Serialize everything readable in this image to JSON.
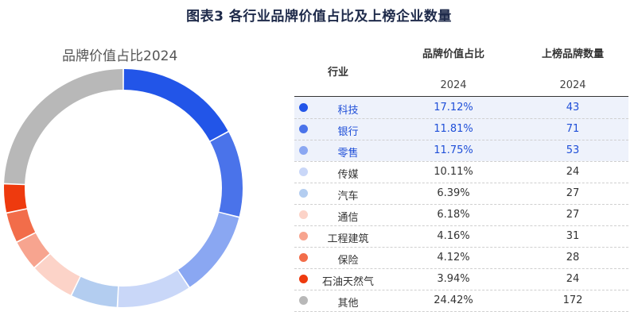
{
  "figure_title": "图表3 各行业品牌价值占比及上榜企业数量",
  "donut_title": "品牌价值占比2024",
  "table": {
    "col_industry": "行业",
    "col_share": "品牌价值占比",
    "col_count": "上榜品牌数量",
    "year_share": "2024",
    "year_count": "2024"
  },
  "chart_data": {
    "type": "pie",
    "title": "品牌价值占比2024",
    "donut": true,
    "categories": [
      "科技",
      "银行",
      "零售",
      "传媒",
      "汽车",
      "通信",
      "工程建筑",
      "保险",
      "石油天然气",
      "其他"
    ],
    "values": [
      17.12,
      11.81,
      11.75,
      10.11,
      6.39,
      6.18,
      4.16,
      4.12,
      3.94,
      24.42
    ],
    "value_labels": [
      "17.12%",
      "11.81%",
      "11.75%",
      "10.11%",
      "6.39%",
      "6.18%",
      "4.16%",
      "4.12%",
      "3.94%",
      "24.42%"
    ],
    "counts": [
      "43",
      "71",
      "53",
      "24",
      "27",
      "27",
      "31",
      "28",
      "24",
      "172"
    ],
    "colors": [
      "#2255e8",
      "#4a73ea",
      "#8aa7f2",
      "#c9d7f8",
      "#b3cdf0",
      "#fcd3c8",
      "#f7a48f",
      "#f26d4a",
      "#ee3a0e",
      "#b8b8b8"
    ],
    "highlighted": [
      true,
      true,
      true,
      false,
      false,
      false,
      false,
      false,
      false,
      false
    ]
  }
}
